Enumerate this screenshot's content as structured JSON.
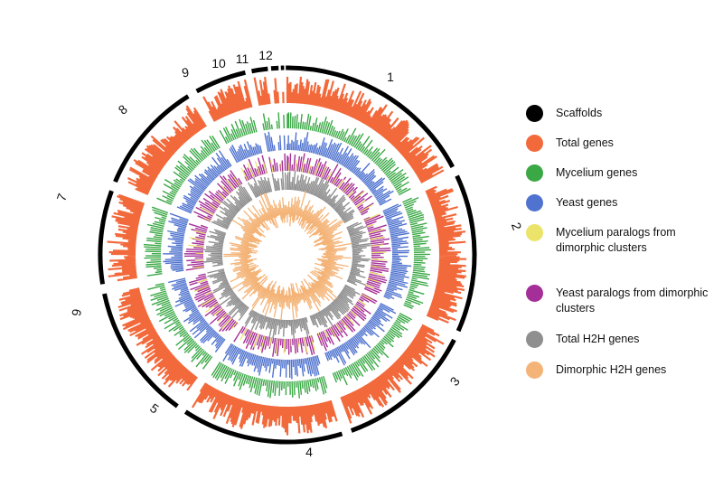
{
  "scaffold_labels": [
    "1",
    "2",
    "3",
    "4",
    "5",
    "6",
    "7",
    "8",
    "9",
    "10",
    "11",
    "12"
  ],
  "legend": [
    {
      "label": "Scaffolds",
      "color": "#000000"
    },
    {
      "label": "Total genes",
      "color": "#f26a3c"
    },
    {
      "label": "Mycelium genes",
      "color": "#3aa845"
    },
    {
      "label": "Yeast genes",
      "color": "#4f73cf"
    },
    {
      "label": "Mycelium paralogs from dimorphic clusters",
      "color": "#ece46a"
    },
    {
      "label": "Yeast paralogs from dimorphic clusters",
      "color": "#a52f98"
    },
    {
      "label": "Total H2H genes",
      "color": "#8f8f8f"
    },
    {
      "label": "Dimorphic H2H genes",
      "color": "#f4b478"
    }
  ]
}
